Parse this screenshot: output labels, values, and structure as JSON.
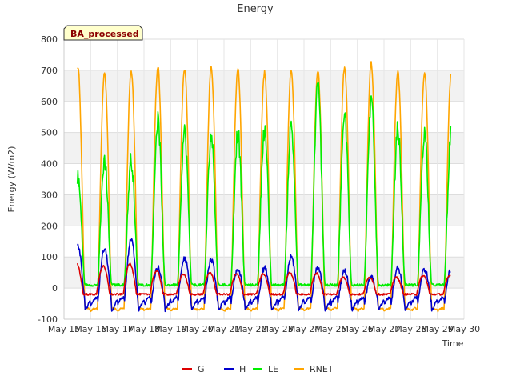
{
  "chart_data": {
    "type": "line",
    "title": "Energy",
    "xlabel": "Time",
    "ylabel": "Energy (W/m2)",
    "annotation": "BA_processed",
    "ylim": [
      -100,
      800
    ],
    "xlim": [
      15,
      30
    ],
    "y_ticks": [
      -100,
      0,
      100,
      200,
      300,
      400,
      500,
      600,
      700,
      800
    ],
    "x_ticks": [
      {
        "day": 15,
        "label": "May 15"
      },
      {
        "day": 16,
        "label": "May 16"
      },
      {
        "day": 17,
        "label": "May 17"
      },
      {
        "day": 18,
        "label": "May 18"
      },
      {
        "day": 19,
        "label": "May 19"
      },
      {
        "day": 20,
        "label": "May 20"
      },
      {
        "day": 21,
        "label": "May 21"
      },
      {
        "day": 22,
        "label": "May 22"
      },
      {
        "day": 23,
        "label": "May 23"
      },
      {
        "day": 24,
        "label": "May 24"
      },
      {
        "day": 25,
        "label": "May 25"
      },
      {
        "day": 26,
        "label": "May 26"
      },
      {
        "day": 27,
        "label": "May 27"
      },
      {
        "day": 28,
        "label": "May 28"
      },
      {
        "day": 29,
        "label": "May 29"
      },
      {
        "day": 30,
        "label": "May 30"
      }
    ],
    "grid": true,
    "banded_background": true,
    "legend_position": "bottom-center",
    "data_range": [
      15.5,
      29.5
    ],
    "series": [
      {
        "name": "G",
        "color": "#dd0000",
        "night": -20,
        "peaks": [
          80,
          70,
          78,
          55,
          45,
          50,
          45,
          45,
          50,
          48,
          35,
          35,
          35,
          40
        ]
      },
      {
        "name": "H",
        "color": "#0000cc",
        "night": -55,
        "peaks": [
          135,
          125,
          155,
          65,
          95,
          90,
          60,
          65,
          100,
          65,
          55,
          35,
          65,
          60
        ]
      },
      {
        "name": "LE",
        "color": "#00ee00",
        "night": 10,
        "peaks": [
          350,
          410,
          410,
          540,
          500,
          490,
          500,
          510,
          520,
          650,
          550,
          600,
          510,
          500
        ]
      },
      {
        "name": "RNET",
        "color": "#ffa500",
        "night": -75,
        "peaks": [
          710,
          690,
          700,
          710,
          705,
          710,
          705,
          695,
          700,
          700,
          710,
          725,
          695,
          690
        ]
      }
    ]
  }
}
